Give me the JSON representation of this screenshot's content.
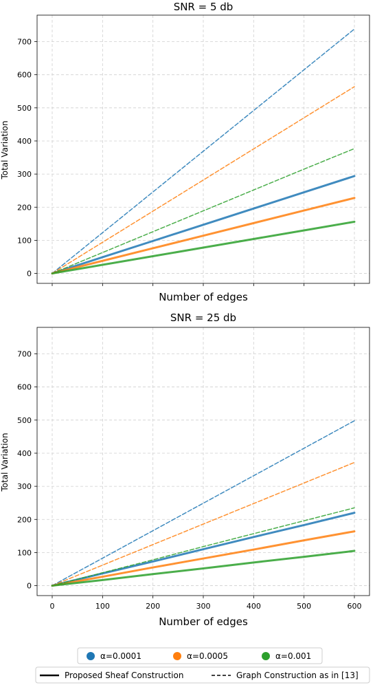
{
  "chart_data": [
    {
      "type": "line",
      "title": "SNR = 5 db",
      "xlabel": "Number of edges",
      "ylabel": "Total Variation",
      "xlim": [
        -30,
        630
      ],
      "ylim": [
        -30,
        780
      ],
      "xticks": [
        0,
        100,
        200,
        300,
        400,
        500,
        600
      ],
      "yticks": [
        0,
        100,
        200,
        300,
        400,
        500,
        600,
        700
      ],
      "show_xtick_labels": false,
      "grid": true,
      "series": [
        {
          "legend_key": "a1",
          "style": "proposed",
          "color": "#1f77b4",
          "x": [
            0,
            100,
            200,
            300,
            400,
            500,
            600
          ],
          "values": [
            0,
            49,
            98,
            147,
            196,
            245,
            294
          ]
        },
        {
          "legend_key": "a2",
          "style": "proposed",
          "color": "#ff7f0e",
          "x": [
            0,
            100,
            200,
            300,
            400,
            500,
            600
          ],
          "values": [
            0,
            38,
            76,
            114,
            152,
            190,
            228
          ]
        },
        {
          "legend_key": "a3",
          "style": "proposed",
          "color": "#2ca02c",
          "x": [
            0,
            100,
            200,
            300,
            400,
            500,
            600
          ],
          "values": [
            0,
            26,
            52,
            78,
            104,
            130,
            156
          ]
        },
        {
          "legend_key": "a1",
          "style": "graph",
          "color": "#1f77b4",
          "x": [
            0,
            100,
            200,
            300,
            400,
            500,
            600
          ],
          "values": [
            0,
            123,
            246,
            369,
            492,
            615,
            738
          ]
        },
        {
          "legend_key": "a2",
          "style": "graph",
          "color": "#ff7f0e",
          "x": [
            0,
            100,
            200,
            300,
            400,
            500,
            600
          ],
          "values": [
            0,
            94,
            188,
            282,
            376,
            470,
            564
          ]
        },
        {
          "legend_key": "a3",
          "style": "graph",
          "color": "#2ca02c",
          "x": [
            0,
            100,
            200,
            300,
            400,
            500,
            600
          ],
          "values": [
            0,
            63,
            126,
            189,
            252,
            315,
            377
          ]
        }
      ]
    },
    {
      "type": "line",
      "title": "SNR = 25 db",
      "xlabel": "Number of edges",
      "ylabel": "Total Variation",
      "xlim": [
        -30,
        630
      ],
      "ylim": [
        -30,
        780
      ],
      "xticks": [
        0,
        100,
        200,
        300,
        400,
        500,
        600
      ],
      "yticks": [
        0,
        100,
        200,
        300,
        400,
        500,
        600,
        700
      ],
      "show_xtick_labels": true,
      "grid": true,
      "series": [
        {
          "legend_key": "a1",
          "style": "proposed",
          "color": "#1f77b4",
          "x": [
            0,
            100,
            200,
            300,
            400,
            500,
            600
          ],
          "values": [
            0,
            37,
            73,
            110,
            147,
            183,
            220
          ]
        },
        {
          "legend_key": "a2",
          "style": "proposed",
          "color": "#ff7f0e",
          "x": [
            0,
            100,
            200,
            300,
            400,
            500,
            600
          ],
          "values": [
            0,
            27,
            55,
            82,
            109,
            137,
            164
          ]
        },
        {
          "legend_key": "a3",
          "style": "proposed",
          "color": "#2ca02c",
          "x": [
            0,
            100,
            200,
            300,
            400,
            500,
            600
          ],
          "values": [
            0,
            17,
            35,
            52,
            70,
            87,
            105
          ]
        },
        {
          "legend_key": "a1",
          "style": "graph",
          "color": "#1f77b4",
          "x": [
            0,
            100,
            200,
            300,
            400,
            500,
            600
          ],
          "values": [
            0,
            83,
            166,
            249,
            332,
            415,
            498
          ]
        },
        {
          "legend_key": "a2",
          "style": "graph",
          "color": "#ff7f0e",
          "x": [
            0,
            100,
            200,
            300,
            400,
            500,
            600
          ],
          "values": [
            0,
            62,
            124,
            186,
            248,
            310,
            372
          ]
        },
        {
          "legend_key": "a3",
          "style": "graph",
          "color": "#2ca02c",
          "x": [
            0,
            100,
            200,
            300,
            400,
            500,
            600
          ],
          "values": [
            0,
            39,
            78,
            118,
            157,
            196,
            235
          ]
        }
      ]
    }
  ],
  "legend": {
    "placement": "bottom",
    "colors": [
      {
        "key": "a1",
        "label": "α=0.0001",
        "color": "#1f77b4"
      },
      {
        "key": "a2",
        "label": "α=0.0005",
        "color": "#ff7f0e"
      },
      {
        "key": "a3",
        "label": "α=0.001",
        "color": "#2ca02c"
      }
    ],
    "styles": [
      {
        "key": "proposed",
        "label": "Proposed Sheaf Construction",
        "dash": "solid"
      },
      {
        "key": "graph",
        "label": "Graph Construction as in [13]",
        "dash": "dashed"
      }
    ]
  }
}
